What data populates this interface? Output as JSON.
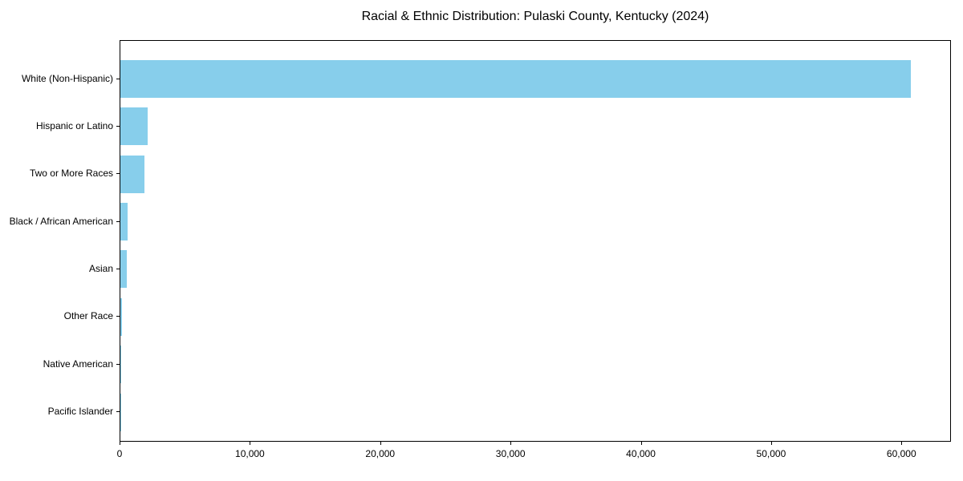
{
  "chart_data": {
    "type": "bar",
    "orientation": "horizontal",
    "title": "Racial & Ethnic Distribution: Pulaski County, Kentucky (2024)",
    "categories": [
      "White (Non-Hispanic)",
      "Hispanic or Latino",
      "Two or More Races",
      "Black / African American",
      "Asian",
      "Other Race",
      "Native American",
      "Pacific Islander"
    ],
    "values": [
      60750,
      2080,
      1850,
      550,
      500,
      100,
      40,
      15
    ],
    "bar_color": "#87ceeb",
    "xlim": [
      0,
      63800
    ],
    "xticks": [
      {
        "value": 0,
        "label": "0"
      },
      {
        "value": 10000,
        "label": "10,000"
      },
      {
        "value": 20000,
        "label": "20,000"
      },
      {
        "value": 30000,
        "label": "30,000"
      },
      {
        "value": 40000,
        "label": "40,000"
      },
      {
        "value": 50000,
        "label": "50,000"
      },
      {
        "value": 60000,
        "label": "60,000"
      }
    ],
    "grid": false,
    "legend": null,
    "xlabel": "",
    "ylabel": ""
  }
}
